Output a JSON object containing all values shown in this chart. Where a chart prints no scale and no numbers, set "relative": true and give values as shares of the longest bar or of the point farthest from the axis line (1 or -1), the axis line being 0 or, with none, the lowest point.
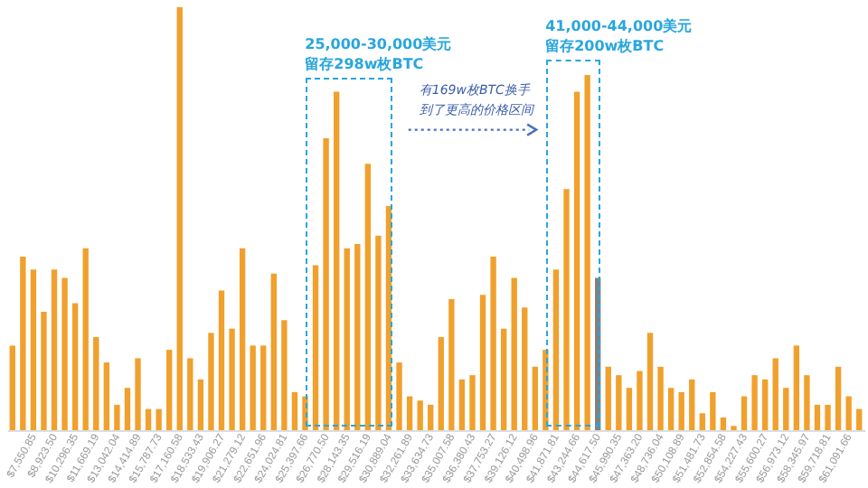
{
  "chart_data": {
    "type": "bar",
    "relative": true,
    "categories": [
      null,
      null,
      "$7,550.85",
      null,
      "$8,923.50",
      null,
      "$10,296.35",
      null,
      "$11,669.19",
      null,
      "$13,042.04",
      null,
      "$14,414.89",
      null,
      "$15,787.73",
      null,
      "$17,160.58",
      null,
      "$18,533.43",
      null,
      "$19,906.27",
      null,
      "$21,279.12",
      null,
      "$22,651.96",
      null,
      "$24,024.81",
      null,
      "$25,397.66",
      null,
      "$26,770.50",
      null,
      "$28,143.35",
      null,
      "$29,516.19",
      null,
      "$30,889.04",
      null,
      "$32,261.89",
      null,
      "$33,634.73",
      null,
      "$35,007.58",
      null,
      "$36,380.43",
      null,
      "$37,753.27",
      null,
      "$39,126.12",
      null,
      "$40,498.96",
      null,
      "$41,871.81",
      null,
      "$43,244.66",
      null,
      "$44,617.50",
      null,
      "$45,990.35",
      null,
      "$47,363.20",
      null,
      "$48,736.04",
      null,
      "$50,108.89",
      null,
      "$51,481.73",
      null,
      "$52,854.58",
      null,
      "$54,227.43",
      null,
      "$55,600.27",
      null,
      "$56,973.12",
      null,
      "$58,345.97",
      null,
      "$59,718.81",
      null,
      "$61,091.66",
      null
    ],
    "values": [
      0.2,
      0.41,
      0.38,
      0.28,
      0.38,
      0.36,
      0.3,
      0.43,
      0.22,
      0.16,
      0.06,
      0.1,
      0.17,
      0.05,
      0.05,
      0.19,
      1,
      0.17,
      0.12,
      0.23,
      0.33,
      0.24,
      0.43,
      0.2,
      0.2,
      0.37,
      0.26,
      0.09,
      0.08,
      0.39,
      0.69,
      0.8,
      0.43,
      0.44,
      0.63,
      0.46,
      0.53,
      0.16,
      0.08,
      0.07,
      0.06,
      0.22,
      0.31,
      0.12,
      0.13,
      0.32,
      0.41,
      0.24,
      0.36,
      0.29,
      0.15,
      0.19,
      0.38,
      0.57,
      0.8,
      0.84,
      0.36,
      0.15,
      0.13,
      0.1,
      0.14,
      0.23,
      0.15,
      0.1,
      0.09,
      0.12,
      0.04,
      0.09,
      0.03,
      0.01,
      0.08,
      0.13,
      0.12,
      0.17,
      0.1,
      0.2,
      0.13,
      0.06,
      0.06,
      0.15,
      0.08,
      0.05
    ],
    "colors": [
      "#f0a02c",
      "#f0a02c",
      "#f0a02c",
      "#f0a02c",
      "#f0a02c",
      "#f0a02c",
      "#f0a02c",
      "#f0a02c",
      "#f0a02c",
      "#f0a02c",
      "#f0a02c",
      "#f0a02c",
      "#f0a02c",
      "#f0a02c",
      "#f0a02c",
      "#f0a02c",
      "#f0a02c",
      "#f0a02c",
      "#f0a02c",
      "#f0a02c",
      "#f0a02c",
      "#f0a02c",
      "#f0a02c",
      "#f0a02c",
      "#f0a02c",
      "#f0a02c",
      "#f0a02c",
      "#f0a02c",
      "#f0a02c",
      "#f0a02c",
      "#f0a02c",
      "#f0a02c",
      "#f0a02c",
      "#f0a02c",
      "#f0a02c",
      "#f0a02c",
      "#f0a02c",
      "#f0a02c",
      "#f0a02c",
      "#f0a02c",
      "#f0a02c",
      "#f0a02c",
      "#f0a02c",
      "#f0a02c",
      "#f0a02c",
      "#f0a02c",
      "#f0a02c",
      "#f0a02c",
      "#f0a02c",
      "#f0a02c",
      "#f0a02c",
      "#f0a02c",
      "#f0a02c",
      "#f0a02c",
      "#f0a02c",
      "#f0a02c",
      "#808080",
      "#f0a02c",
      "#f0a02c",
      "#f0a02c",
      "#f0a02c",
      "#f0a02c",
      "#f0a02c",
      "#f0a02c",
      "#f0a02c",
      "#f0a02c",
      "#f0a02c",
      "#f0a02c",
      "#f0a02c",
      "#f0a02c",
      "#f0a02c",
      "#f0a02c",
      "#f0a02c",
      "#f0a02c",
      "#f0a02c",
      "#f0a02c",
      "#f0a02c",
      "#f0a02c",
      "#f0a02c",
      "#f0a02c",
      "#f0a02c",
      "#f0a02c"
    ],
    "annotations": [
      "25,000-30,000美元",
      "留存298w枚BTC",
      "41,000-44,000美元",
      "留存200w枚BTC",
      "有169w枚BTC换手",
      "到了更高的价格区间"
    ],
    "grid": false
  }
}
